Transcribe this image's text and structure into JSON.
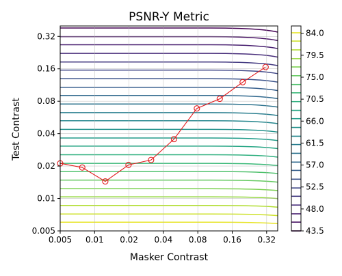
{
  "chart_data": {
    "type": "line",
    "title": "PSNR-Y Metric",
    "xlabel": "Masker Contrast",
    "ylabel": "Test Contrast",
    "x_scale": "log2",
    "y_scale": "log2",
    "xlim": [
      0.005,
      0.4
    ],
    "ylim": [
      0.005,
      0.4
    ],
    "x_ticks": [
      0.005,
      0.01,
      0.02,
      0.04,
      0.08,
      0.16,
      0.32
    ],
    "x_tick_labels": [
      "0.005",
      "0.01",
      "0.02",
      "0.04",
      "0.08",
      "0.16",
      "0.32"
    ],
    "y_ticks": [
      0.005,
      0.01,
      0.02,
      0.04,
      0.08,
      0.16,
      0.32
    ],
    "y_tick_labels": [
      "0.005",
      "0.01",
      "0.02",
      "0.04",
      "0.08",
      "0.16",
      "0.32"
    ],
    "grid": true,
    "contour_levels": [
      43.5,
      45.3,
      47.0,
      48.8,
      50.6,
      52.3,
      54.1,
      55.9,
      57.6,
      59.4,
      61.2,
      62.9,
      64.7,
      66.5,
      68.2,
      70.0,
      71.8,
      73.5,
      75.3,
      77.1,
      78.8,
      80.6,
      82.4,
      84.1
    ],
    "colorbar": {
      "colormap": "viridis",
      "min": 43.5,
      "max": 85.5,
      "tick_values": [
        43.5,
        48.0,
        52.5,
        57.0,
        61.5,
        66.0,
        70.5,
        75.0,
        79.5,
        84.0
      ],
      "tick_labels": [
        "43.5",
        "48.0",
        "52.5",
        "57.0",
        "61.5",
        "66.0",
        "70.5",
        "75.0",
        "79.5",
        "84.0"
      ]
    },
    "series": [
      {
        "x": [
          0.005,
          0.0078,
          0.0124,
          0.0198,
          0.0312,
          0.0495,
          0.0785,
          0.1245,
          0.1975,
          0.3135
        ],
        "y": [
          0.0212,
          0.0194,
          0.0144,
          0.0205,
          0.0228,
          0.0356,
          0.0686,
          0.0843,
          0.1202,
          0.1662
        ],
        "color": "#e31a1c",
        "marker": "open-circle"
      }
    ]
  }
}
